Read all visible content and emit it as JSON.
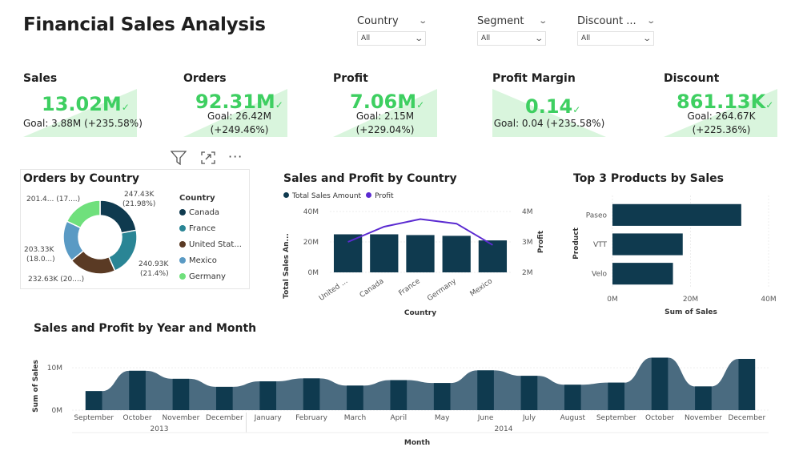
{
  "page": {
    "title": "Financial Sales Analysis"
  },
  "slicers": [
    {
      "label": "Country",
      "value": "All"
    },
    {
      "label": "Segment",
      "value": "All"
    },
    {
      "label": "Discount ...",
      "value": "All"
    }
  ],
  "kpis": [
    {
      "title": "Sales",
      "value": "13.02M",
      "goal_line1": "Goal: 3.88M (+235.58%)",
      "goal_line2": ""
    },
    {
      "title": "Orders",
      "value": "92.31M",
      "goal_line1": "Goal: 26.42M",
      "goal_line2": "(+249.46%)"
    },
    {
      "title": "Profit",
      "value": "7.06M",
      "goal_line1": "Goal: 2.15M",
      "goal_line2": "(+229.04%)"
    },
    {
      "title": "Profit Margin",
      "value": "0.14",
      "goal_line1": "Goal: 0.04 (+235.58%)",
      "goal_line2": ""
    },
    {
      "title": "Discount",
      "value": "861.13K",
      "goal_line1": "Goal: 264.67K",
      "goal_line2": "(+225.36%)"
    }
  ],
  "colors": {
    "kpi_green": "#3ecf61",
    "kpi_bg": "#d9f5dd",
    "navy": "#0f3a4f",
    "steel": "#4a6b80",
    "purple": "#5b2bd1"
  },
  "toolbar": {
    "icons": [
      "filter-icon",
      "focus-mode-icon",
      "more-options-icon"
    ]
  },
  "orders_by_country": {
    "title": "Orders by Country",
    "legend_title": "Country",
    "labels": {
      "canada": [
        "247.43K",
        "(21.98%)"
      ],
      "france": [
        "240.93K",
        "(21.4%)"
      ],
      "united_states": [
        "232.63K (20....)"
      ],
      "mexico": [
        "203.33K",
        "(18.0...)"
      ],
      "germany": [
        "201.4... (17....)"
      ]
    },
    "chart_data": {
      "type": "pie",
      "categories": [
        "Canada",
        "France",
        "United Stat...",
        "Mexico",
        "Germany"
      ],
      "values": [
        247430,
        240930,
        232630,
        203330,
        201400
      ],
      "colors": [
        "#0f3a4f",
        "#2a8595",
        "#5a3a24",
        "#5a9ac4",
        "#6fe07c"
      ]
    }
  },
  "sales_profit_by_country": {
    "title": "Sales and Profit by Country",
    "legend": [
      "Total Sales Amount",
      "Profit"
    ],
    "y_ticks": [
      "0M",
      "20M",
      "40M"
    ],
    "y2_ticks": [
      "2M",
      "3M",
      "4M"
    ],
    "ylabel": "Total Sales An...",
    "y2label": "Profit",
    "xlabel": "Country",
    "chart_data": {
      "type": "bar",
      "categories": [
        "United ...",
        "Canada",
        "France",
        "Germany",
        "Mexico"
      ],
      "series": [
        {
          "name": "Total Sales Amount",
          "values": [
            25,
            25,
            24.5,
            24,
            21
          ]
        },
        {
          "name": "Profit",
          "values": [
            3.0,
            3.5,
            3.75,
            3.6,
            2.9
          ]
        }
      ],
      "ylim": [
        0,
        40
      ],
      "y2lim": [
        2,
        4
      ]
    }
  },
  "top_products": {
    "title": "Top 3 Products by Sales",
    "ylabel": "Product",
    "xlabel": "Sum of Sales",
    "x_ticks": [
      "0M",
      "20M",
      "40M"
    ],
    "chart_data": {
      "type": "bar",
      "categories": [
        "Paseo",
        "VTT",
        "Velo"
      ],
      "values": [
        33,
        18,
        15.5
      ],
      "xlim": [
        0,
        40
      ]
    }
  },
  "year_month": {
    "title": "Sales and Profit by Year and Month",
    "ylabel": "Sum of Sales",
    "xlabel": "Month",
    "y_ticks": [
      "0M",
      "10M"
    ],
    "years": [
      "2013",
      "2014"
    ],
    "chart_data": {
      "type": "bar",
      "categories": [
        "September",
        "October",
        "November",
        "December",
        "January",
        "February",
        "March",
        "April",
        "May",
        "June",
        "July",
        "August",
        "September",
        "October",
        "November",
        "December"
      ],
      "values": [
        4.5,
        9.3,
        7.4,
        5.5,
        6.8,
        7.5,
        5.8,
        7.1,
        6.4,
        9.4,
        8.1,
        6.0,
        6.5,
        12.4,
        5.6,
        12.1
      ],
      "ylim": [
        0,
        14
      ]
    }
  }
}
